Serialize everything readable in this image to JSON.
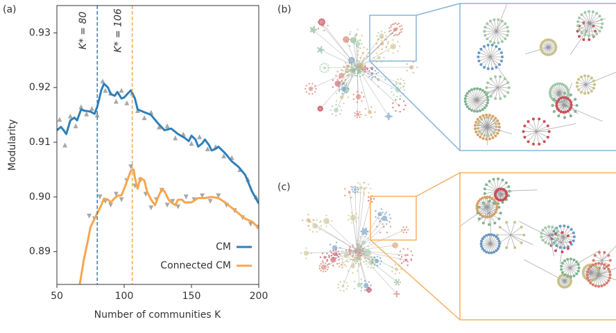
{
  "chart_data": {
    "type": "line",
    "panel_label": "(a)",
    "x_label": "Number of communities K",
    "y_label": "Modularity",
    "xlim": [
      50,
      200
    ],
    "ylim": [
      0.884,
      0.935
    ],
    "xticks": [
      50,
      100,
      150,
      200
    ],
    "yticks": [
      0.89,
      {
        "value": 0.9,
        "label": "0.90"
      },
      0.91,
      0.92,
      0.93
    ],
    "legend": "lower right",
    "series": [
      {
        "name": "CM",
        "color": "#2e7fb8",
        "x": [
          50,
          53,
          55,
          57,
          60,
          63,
          65,
          68,
          70,
          75,
          78,
          80,
          83,
          85,
          88,
          90,
          93,
          95,
          98,
          100,
          103,
          105,
          108,
          110,
          115,
          120,
          125,
          130,
          135,
          140,
          145,
          148,
          150,
          153,
          155,
          158,
          160,
          163,
          165,
          168,
          170,
          175,
          180,
          185,
          190,
          195,
          200
        ],
        "values": [
          0.9122,
          0.9128,
          0.9122,
          0.9115,
          0.914,
          0.9145,
          0.914,
          0.916,
          0.9158,
          0.9156,
          0.9152,
          0.9165,
          0.9195,
          0.9207,
          0.92,
          0.9188,
          0.9185,
          0.9192,
          0.918,
          0.9182,
          0.919,
          0.9195,
          0.918,
          0.916,
          0.9155,
          0.915,
          0.9135,
          0.9122,
          0.9125,
          0.9115,
          0.9108,
          0.9102,
          0.9112,
          0.9105,
          0.9092,
          0.9098,
          0.9105,
          0.9095,
          0.9085,
          0.9088,
          0.9092,
          0.908,
          0.9065,
          0.9055,
          0.904,
          0.901,
          0.8988
        ],
        "markers": {
          "x": [
            52,
            56,
            60,
            64,
            68,
            72,
            76,
            80,
            84,
            86,
            90,
            94,
            98,
            102,
            106,
            110,
            115,
            120,
            126,
            132,
            138,
            144,
            150,
            156,
            162,
            168,
            174,
            180,
            186,
            192,
            198
          ],
          "values": [
            0.9142,
            0.9095,
            0.9148,
            0.913,
            0.9165,
            0.9152,
            0.9162,
            0.915,
            0.9212,
            0.9195,
            0.919,
            0.9175,
            0.9195,
            0.9172,
            0.919,
            0.9158,
            0.9145,
            0.9155,
            0.9128,
            0.913,
            0.9108,
            0.9115,
            0.9098,
            0.911,
            0.9088,
            0.9092,
            0.9075,
            0.9072,
            0.905,
            0.9032,
            0.9
          ]
        }
      },
      {
        "name": "Connected CM",
        "color": "#f7a54e",
        "x": [
          67,
          70,
          73,
          75,
          78,
          80,
          83,
          85,
          88,
          90,
          93,
          95,
          98,
          100,
          103,
          105,
          107,
          108,
          110,
          112,
          115,
          117,
          120,
          123,
          125,
          128,
          130,
          133,
          135,
          138,
          140,
          143,
          145,
          150,
          155,
          160,
          165,
          170,
          175,
          180,
          185,
          190,
          195,
          200
        ],
        "values": [
          0.884,
          0.8885,
          0.892,
          0.8945,
          0.896,
          0.897,
          0.8985,
          0.8997,
          0.8995,
          0.899,
          0.8998,
          0.9002,
          0.9003,
          0.9015,
          0.9035,
          0.9048,
          0.905,
          0.9035,
          0.9015,
          0.9035,
          0.903,
          0.901,
          0.8995,
          0.8985,
          0.8998,
          0.9015,
          0.901,
          0.8995,
          0.899,
          0.8985,
          0.8995,
          0.8995,
          0.899,
          0.899,
          0.8998,
          0.8998,
          0.9,
          0.8998,
          0.899,
          0.898,
          0.897,
          0.896,
          0.8955,
          0.8943
        ],
        "markers": {
          "x": [
            74,
            78,
            82,
            86,
            90,
            94,
            98,
            102,
            105,
            108,
            112,
            116,
            120,
            124,
            128,
            132,
            136,
            140,
            146,
            152,
            158,
            164,
            170,
            176,
            182,
            188,
            194,
            199
          ],
          "values": [
            0.8965,
            0.896,
            0.9,
            0.8992,
            0.8985,
            0.9005,
            0.8995,
            0.903,
            0.9055,
            0.902,
            0.903,
            0.9005,
            0.898,
            0.8995,
            0.9012,
            0.8985,
            0.8992,
            0.8982,
            0.9,
            0.8995,
            0.9002,
            0.8992,
            0.9002,
            0.8985,
            0.8975,
            0.8962,
            0.895,
            0.8945
          ]
        }
      }
    ],
    "annotations": [
      {
        "x": 80,
        "label": "K* = 80",
        "color": "#2e7fb8"
      },
      {
        "x": 106,
        "label": "K* = 106",
        "color": "#f7a54e"
      }
    ]
  },
  "panels": [
    {
      "label": "(b)"
    },
    {
      "label": "(c)"
    }
  ]
}
